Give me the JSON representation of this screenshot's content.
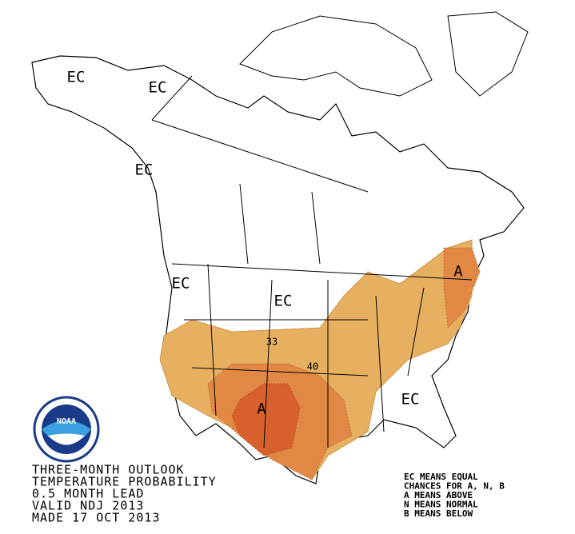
{
  "map_labels": [
    "EC",
    "EC",
    "EC",
    "EC",
    "EC",
    "EC",
    "A",
    "A",
    "33",
    "40"
  ],
  "logo": "NOAA",
  "title_lines": [
    "THREE-MONTH OUTLOOK",
    "TEMPERATURE PROBABILITY",
    "0.5 MONTH LEAD",
    "VALID NDJ 2013",
    "MADE 17 OCT 2013"
  ],
  "legend_lines": [
    "EC MEANS EQUAL",
    "CHANCES FOR A, N, B",
    "A MEANS ABOVE",
    "N MEANS NORMAL",
    "B MEANS BELOW"
  ]
}
